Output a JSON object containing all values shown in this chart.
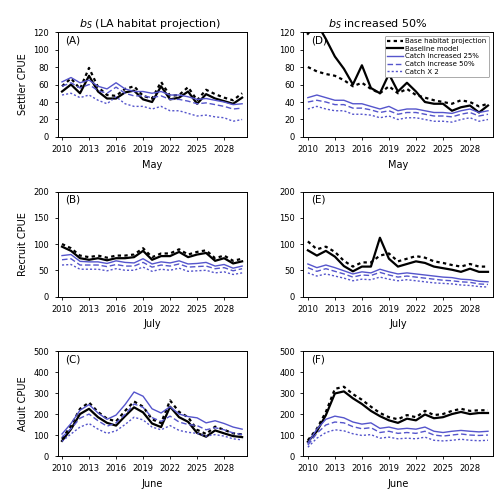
{
  "years": [
    2010,
    2011,
    2012,
    2013,
    2014,
    2015,
    2016,
    2017,
    2018,
    2019,
    2020,
    2021,
    2022,
    2023,
    2024,
    2025,
    2026,
    2027,
    2028,
    2029,
    2030
  ],
  "xlabels": [
    "May",
    "July",
    "June"
  ],
  "ylabels": [
    "Settler CPUE",
    "Recruit CPUE",
    "Adult CPUE"
  ],
  "yticks_A": [
    0,
    20,
    40,
    60,
    80,
    100,
    120
  ],
  "yticks_B": [
    0,
    50,
    100,
    150,
    200
  ],
  "yticks_C": [
    0,
    100,
    200,
    300,
    400,
    500
  ],
  "xticks": [
    2010,
    2013,
    2016,
    2019,
    2022,
    2025,
    2028
  ],
  "legend_labels": [
    "Base habitat projection",
    "Baseline model",
    "Catch increased 25%",
    "Catch increase 50%",
    "Catch X 2"
  ],
  "black_color": "#000000",
  "blue_color": "#5555CC",
  "A_base_habitat": [
    58,
    67,
    55,
    79,
    57,
    48,
    47,
    55,
    58,
    47,
    44,
    63,
    47,
    48,
    57,
    42,
    54,
    49,
    45,
    42,
    50
  ],
  "A_baseline": [
    52,
    60,
    50,
    70,
    52,
    44,
    44,
    51,
    53,
    43,
    40,
    58,
    43,
    45,
    52,
    38,
    49,
    44,
    41,
    38,
    45
  ],
  "A_catch25": [
    63,
    68,
    62,
    65,
    58,
    55,
    62,
    55,
    52,
    52,
    50,
    52,
    48,
    48,
    46,
    43,
    44,
    42,
    40,
    37,
    38
  ],
  "A_catch50": [
    58,
    62,
    56,
    60,
    53,
    50,
    57,
    50,
    47,
    47,
    45,
    47,
    43,
    43,
    41,
    38,
    39,
    37,
    35,
    32,
    33
  ],
  "A_catchX2": [
    48,
    50,
    45,
    48,
    42,
    38,
    46,
    38,
    35,
    35,
    32,
    35,
    30,
    30,
    27,
    24,
    25,
    23,
    22,
    18,
    20
  ],
  "B_base_habitat": [
    100,
    92,
    78,
    75,
    78,
    74,
    78,
    78,
    80,
    92,
    75,
    82,
    82,
    90,
    80,
    85,
    88,
    73,
    78,
    68,
    72
  ],
  "B_baseline": [
    95,
    87,
    73,
    70,
    73,
    69,
    73,
    73,
    75,
    87,
    70,
    77,
    77,
    85,
    75,
    80,
    83,
    68,
    73,
    63,
    67
  ],
  "B_catch25": [
    78,
    80,
    67,
    66,
    66,
    63,
    68,
    65,
    64,
    72,
    62,
    66,
    64,
    68,
    62,
    63,
    65,
    58,
    61,
    54,
    58
  ],
  "B_catch50": [
    70,
    72,
    60,
    60,
    60,
    57,
    61,
    58,
    58,
    65,
    56,
    60,
    58,
    62,
    56,
    57,
    58,
    53,
    55,
    49,
    53
  ],
  "B_catchX2": [
    60,
    61,
    52,
    52,
    52,
    49,
    53,
    50,
    50,
    56,
    48,
    52,
    50,
    54,
    48,
    49,
    50,
    45,
    47,
    42,
    45
  ],
  "C_base_habitat": [
    82,
    145,
    225,
    255,
    210,
    178,
    165,
    215,
    260,
    235,
    175,
    157,
    265,
    210,
    185,
    125,
    105,
    140,
    125,
    108,
    103
  ],
  "C_baseline": [
    72,
    128,
    200,
    225,
    185,
    158,
    145,
    190,
    232,
    208,
    155,
    138,
    235,
    185,
    163,
    110,
    92,
    122,
    108,
    95,
    90
  ],
  "C_catch25": [
    105,
    155,
    218,
    245,
    205,
    175,
    195,
    245,
    305,
    285,
    225,
    205,
    235,
    200,
    188,
    182,
    158,
    168,
    155,
    138,
    128
  ],
  "C_catch50": [
    90,
    130,
    180,
    200,
    168,
    142,
    158,
    198,
    248,
    232,
    183,
    165,
    190,
    162,
    150,
    145,
    125,
    135,
    125,
    110,
    102
  ],
  "C_catchX2": [
    70,
    105,
    138,
    155,
    128,
    108,
    120,
    150,
    185,
    172,
    138,
    125,
    145,
    122,
    113,
    108,
    95,
    102,
    95,
    82,
    77
  ],
  "D_base_habitat": [
    80,
    75,
    72,
    70,
    65,
    58,
    62,
    55,
    50,
    58,
    50,
    55,
    48,
    45,
    42,
    40,
    38,
    42,
    40,
    35,
    38
  ],
  "D_baseline": [
    118,
    130,
    112,
    92,
    78,
    60,
    82,
    56,
    50,
    72,
    52,
    62,
    52,
    40,
    38,
    38,
    30,
    34,
    36,
    28,
    36
  ],
  "D_catch25": [
    45,
    48,
    45,
    42,
    42,
    38,
    38,
    35,
    32,
    35,
    30,
    32,
    32,
    30,
    28,
    28,
    27,
    30,
    32,
    28,
    30
  ],
  "D_catch50": [
    40,
    42,
    40,
    37,
    37,
    33,
    33,
    31,
    28,
    30,
    26,
    28,
    28,
    26,
    24,
    24,
    23,
    26,
    28,
    24,
    26
  ],
  "D_catchX2": [
    32,
    35,
    32,
    30,
    30,
    26,
    26,
    25,
    22,
    24,
    20,
    22,
    22,
    20,
    18,
    18,
    17,
    20,
    22,
    18,
    20
  ],
  "E_base_habitat": [
    105,
    90,
    95,
    85,
    68,
    57,
    65,
    65,
    78,
    82,
    67,
    72,
    77,
    74,
    67,
    64,
    60,
    57,
    62,
    57,
    57
  ],
  "E_baseline": [
    88,
    78,
    87,
    76,
    58,
    48,
    57,
    57,
    112,
    72,
    57,
    62,
    67,
    64,
    57,
    54,
    51,
    47,
    53,
    47,
    47
  ],
  "E_catch25": [
    62,
    55,
    60,
    55,
    49,
    43,
    47,
    45,
    52,
    47,
    43,
    45,
    43,
    41,
    39,
    37,
    36,
    33,
    32,
    29,
    28
  ],
  "E_catch50": [
    55,
    48,
    53,
    48,
    43,
    37,
    41,
    40,
    46,
    41,
    37,
    39,
    37,
    35,
    33,
    31,
    30,
    28,
    27,
    24,
    23
  ],
  "E_catchX2": [
    45,
    39,
    43,
    39,
    35,
    30,
    33,
    32,
    37,
    33,
    30,
    32,
    30,
    28,
    26,
    25,
    24,
    22,
    21,
    19,
    18
  ],
  "F_base_habitat": [
    75,
    130,
    210,
    320,
    330,
    295,
    268,
    235,
    205,
    185,
    175,
    195,
    185,
    215,
    195,
    200,
    215,
    225,
    215,
    218,
    218
  ],
  "F_baseline": [
    68,
    118,
    195,
    298,
    308,
    275,
    248,
    215,
    190,
    170,
    158,
    178,
    170,
    198,
    180,
    185,
    200,
    210,
    200,
    205,
    205
  ],
  "F_catch25": [
    62,
    128,
    175,
    190,
    182,
    162,
    152,
    158,
    132,
    138,
    128,
    132,
    128,
    138,
    118,
    112,
    118,
    122,
    118,
    115,
    118
  ],
  "F_catch50": [
    52,
    108,
    148,
    162,
    158,
    140,
    130,
    135,
    112,
    118,
    108,
    112,
    108,
    118,
    100,
    95,
    100,
    105,
    100,
    98,
    100
  ],
  "F_catchX2": [
    42,
    85,
    112,
    125,
    120,
    106,
    98,
    102,
    85,
    90,
    82,
    85,
    82,
    90,
    75,
    72,
    75,
    80,
    75,
    73,
    75
  ]
}
